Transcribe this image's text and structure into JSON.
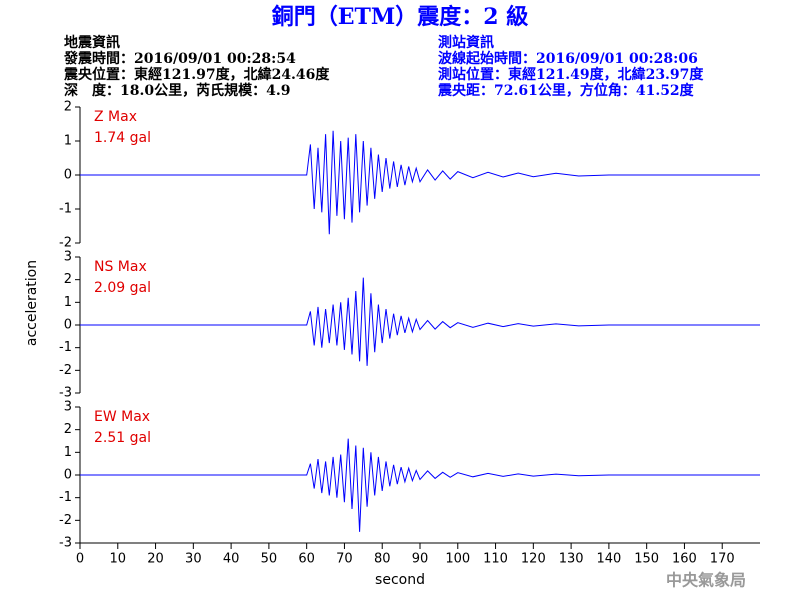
{
  "header": {
    "title": "銅門（ETM）震度：2 級",
    "left": [
      "地震資訊",
      "發震時間：2016/09/01 00:28:54",
      "震央位置：東經121.97度，北緯24.46度",
      "深　度：18.0公里，芮氏規模：4.9"
    ],
    "right": [
      "測站資訊",
      "波線起始時間：2016/09/01 00:28:06",
      "測站位置：東經121.49度，北緯23.97度",
      "震央距：72.61公里，方位角：41.52度"
    ],
    "footer": "中央氣象局"
  },
  "chart_data": [
    {
      "type": "line",
      "annotations": [
        "Z Max",
        "1.74 gal"
      ],
      "xlim": [
        0,
        180
      ],
      "ylim": [
        -2,
        2
      ],
      "yticks": [
        -2,
        -1,
        0,
        1,
        2
      ],
      "series": [
        {
          "color": "#0000ff",
          "x": [
            0,
            60,
            61,
            62,
            63,
            64,
            65,
            66,
            67,
            68,
            69,
            70,
            71,
            72,
            73,
            74,
            75,
            76,
            77,
            78,
            79,
            80,
            81,
            82,
            83,
            84,
            85,
            86,
            87,
            88,
            89,
            90,
            92,
            94,
            96,
            98,
            100,
            104,
            108,
            112,
            116,
            120,
            126,
            132,
            140,
            180
          ],
          "values": [
            0,
            0,
            0.9,
            -1.0,
            0.8,
            -1.1,
            1.2,
            -1.74,
            1.3,
            -1.2,
            1.0,
            -1.3,
            1.1,
            -1.4,
            1.2,
            -1.1,
            1.0,
            -0.9,
            0.8,
            -0.7,
            0.6,
            -0.5,
            0.5,
            -0.4,
            0.4,
            -0.35,
            0.3,
            -0.3,
            0.25,
            -0.2,
            0.2,
            -0.2,
            0.15,
            -0.15,
            0.12,
            -0.12,
            0.1,
            -0.08,
            0.08,
            -0.06,
            0.06,
            -0.05,
            0.05,
            -0.03,
            0,
            0
          ]
        }
      ]
    },
    {
      "type": "line",
      "annotations": [
        "NS Max",
        "2.09 gal"
      ],
      "ylabel": "acceleration",
      "xlim": [
        0,
        180
      ],
      "ylim": [
        -3,
        3
      ],
      "yticks": [
        -3,
        -2,
        -1,
        0,
        1,
        2,
        3
      ],
      "series": [
        {
          "color": "#0000ff",
          "x": [
            0,
            60,
            61,
            62,
            63,
            64,
            65,
            66,
            67,
            68,
            69,
            70,
            71,
            72,
            73,
            74,
            75,
            76,
            77,
            78,
            79,
            80,
            81,
            82,
            83,
            84,
            85,
            86,
            87,
            88,
            89,
            90,
            92,
            94,
            96,
            98,
            100,
            104,
            108,
            112,
            116,
            120,
            126,
            132,
            140,
            180
          ],
          "values": [
            0,
            0,
            0.6,
            -0.9,
            0.8,
            -1.0,
            0.7,
            -0.8,
            0.9,
            -0.9,
            1.0,
            -1.1,
            1.2,
            -1.3,
            1.5,
            -1.6,
            2.09,
            -1.8,
            1.4,
            -1.2,
            0.9,
            -0.8,
            0.7,
            -0.6,
            0.5,
            -0.45,
            0.4,
            -0.35,
            0.3,
            -0.3,
            0.25,
            -0.2,
            0.2,
            -0.18,
            0.15,
            -0.12,
            0.1,
            -0.1,
            0.08,
            -0.07,
            0.06,
            -0.05,
            0.05,
            -0.04,
            0,
            0
          ]
        }
      ]
    },
    {
      "type": "line",
      "annotations": [
        "EW Max",
        "2.51 gal"
      ],
      "xlabel": "second",
      "xlim": [
        0,
        180
      ],
      "ylim": [
        -3,
        3
      ],
      "yticks": [
        -3,
        -2,
        -1,
        0,
        1,
        2,
        3
      ],
      "xticks": [
        0,
        10,
        20,
        30,
        40,
        50,
        60,
        70,
        80,
        90,
        100,
        110,
        120,
        130,
        140,
        150,
        160,
        170
      ],
      "series": [
        {
          "color": "#0000ff",
          "x": [
            0,
            60,
            61,
            62,
            63,
            64,
            65,
            66,
            67,
            68,
            69,
            70,
            71,
            72,
            73,
            74,
            75,
            76,
            77,
            78,
            79,
            80,
            81,
            82,
            83,
            84,
            85,
            86,
            87,
            88,
            89,
            90,
            92,
            94,
            96,
            98,
            100,
            104,
            108,
            112,
            116,
            120,
            126,
            132,
            140,
            180
          ],
          "values": [
            0,
            0,
            0.5,
            -0.6,
            0.7,
            -0.8,
            0.6,
            -0.9,
            0.8,
            -1.0,
            0.9,
            -1.2,
            1.6,
            -1.5,
            1.3,
            -2.51,
            1.2,
            -1.4,
            1.0,
            -0.9,
            0.8,
            -0.7,
            0.6,
            -0.5,
            0.45,
            -0.4,
            0.35,
            -0.3,
            0.3,
            -0.25,
            0.2,
            -0.2,
            0.18,
            -0.15,
            0.12,
            -0.1,
            0.1,
            -0.08,
            0.07,
            -0.06,
            0.05,
            -0.05,
            0.04,
            -0.03,
            0,
            0
          ]
        }
      ]
    }
  ]
}
